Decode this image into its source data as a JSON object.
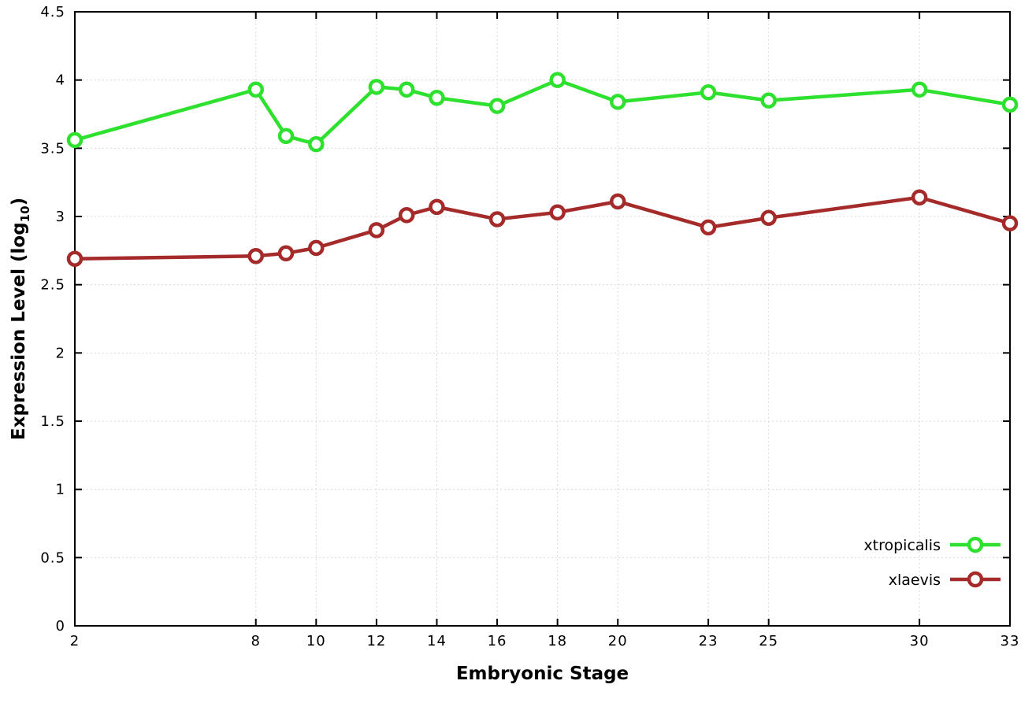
{
  "chart_data": {
    "type": "line",
    "title": "",
    "xlabel": "Embryonic Stage",
    "ylabel": "Expression Level (log10)",
    "ylabel_parts": {
      "pre": "Expression Level (log",
      "sub": "10",
      "post": ")"
    },
    "xlim": [
      2,
      33
    ],
    "ylim": [
      0,
      4.5
    ],
    "xticks": [
      2,
      8,
      10,
      12,
      14,
      16,
      18,
      20,
      23,
      25,
      30,
      33
    ],
    "yticks": [
      0,
      0.5,
      1,
      1.5,
      2,
      2.5,
      3,
      3.5,
      4,
      4.5
    ],
    "x": [
      2,
      8,
      9,
      10,
      12,
      13,
      14,
      16,
      18,
      20,
      23,
      25,
      30,
      33
    ],
    "grid": true,
    "legend_position": "bottom-right",
    "series": [
      {
        "name": "xtropicalis",
        "color": "#2fe12f",
        "values": [
          3.56,
          3.93,
          3.59,
          3.53,
          3.95,
          3.93,
          3.87,
          3.81,
          4.0,
          3.84,
          3.91,
          3.85,
          3.93,
          3.82
        ]
      },
      {
        "name": "xlaevis",
        "color": "#a52a2a",
        "values": [
          2.69,
          2.71,
          2.73,
          2.77,
          2.9,
          3.01,
          3.07,
          2.98,
          3.03,
          3.11,
          2.92,
          2.99,
          3.14,
          2.95
        ]
      }
    ]
  }
}
